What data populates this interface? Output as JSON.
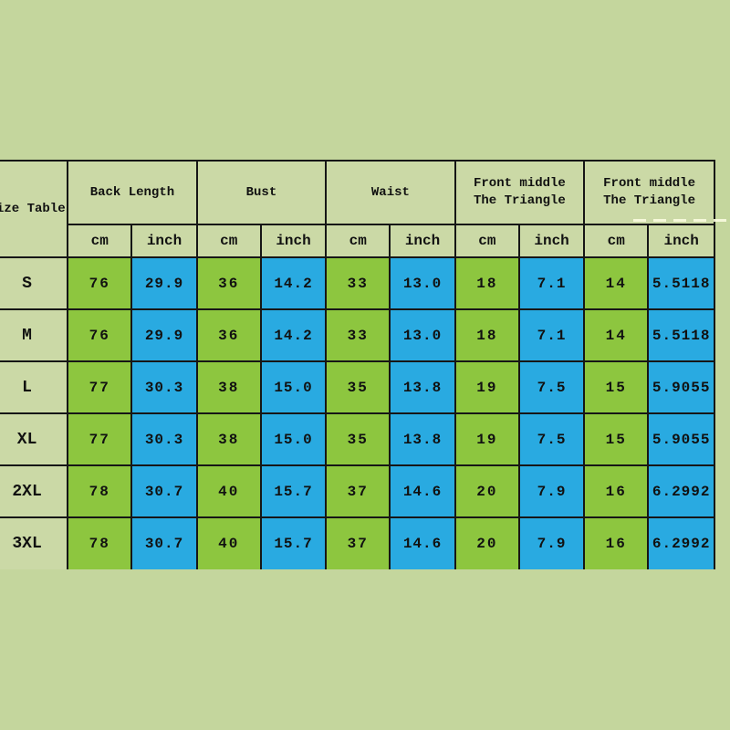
{
  "page": {
    "background_color": "#c4d69d",
    "border_color": "#161616",
    "header_cell_color": "#cbd9a6",
    "cm_cell_color": "#8dc63f",
    "inch_cell_color": "#29aae1"
  },
  "table": {
    "title": "Size Table",
    "column_groups": [
      {
        "label": "Back Length"
      },
      {
        "label": "Bust"
      },
      {
        "label": "Waist"
      },
      {
        "label": "Front middle\nThe Triangle"
      },
      {
        "label": "Front middle\nThe Triangle"
      }
    ],
    "units": [
      "cm",
      "inch",
      "cm",
      "inch",
      "cm",
      "inch",
      "cm",
      "inch",
      "cm",
      "inch"
    ],
    "rows": [
      {
        "size": "S",
        "values": [
          "76",
          "29.9",
          "36",
          "14.2",
          "33",
          "13.0",
          "18",
          "7.1",
          "14",
          "5.5118"
        ]
      },
      {
        "size": "M",
        "values": [
          "76",
          "29.9",
          "36",
          "14.2",
          "33",
          "13.0",
          "18",
          "7.1",
          "14",
          "5.5118"
        ]
      },
      {
        "size": "L",
        "values": [
          "77",
          "30.3",
          "38",
          "15.0",
          "35",
          "13.8",
          "19",
          "7.5",
          "15",
          "5.9055"
        ]
      },
      {
        "size": "XL",
        "values": [
          "77",
          "30.3",
          "38",
          "15.0",
          "35",
          "13.8",
          "19",
          "7.5",
          "15",
          "5.9055"
        ]
      },
      {
        "size": "2XL",
        "values": [
          "78",
          "30.7",
          "40",
          "15.7",
          "37",
          "14.6",
          "20",
          "7.9",
          "16",
          "6.2992"
        ]
      },
      {
        "size": "3XL",
        "values": [
          "78",
          "30.7",
          "40",
          "15.7",
          "37",
          "14.6",
          "20",
          "7.9",
          "16",
          "6.2992"
        ]
      }
    ]
  },
  "chart_data": {
    "type": "table",
    "title": "Size Table",
    "column_groups": [
      "Back Length",
      "Bust",
      "Waist",
      "Front middle The Triangle",
      "Front middle The Triangle"
    ],
    "unit_columns": [
      "cm",
      "inch",
      "cm",
      "inch",
      "cm",
      "inch",
      "cm",
      "inch",
      "cm",
      "inch"
    ],
    "row_labels": [
      "S",
      "M",
      "L",
      "XL",
      "2XL",
      "3XL"
    ],
    "rows": [
      [
        76,
        29.9,
        36,
        14.2,
        33,
        13.0,
        18,
        7.1,
        14,
        5.5118
      ],
      [
        76,
        29.9,
        36,
        14.2,
        33,
        13.0,
        18,
        7.1,
        14,
        5.5118
      ],
      [
        77,
        30.3,
        38,
        15.0,
        35,
        13.8,
        19,
        7.5,
        15,
        5.9055
      ],
      [
        77,
        30.3,
        38,
        15.0,
        35,
        13.8,
        19,
        7.5,
        15,
        5.9055
      ],
      [
        78,
        30.7,
        40,
        15.7,
        37,
        14.6,
        20,
        7.9,
        16,
        6.2992
      ],
      [
        78,
        30.7,
        40,
        15.7,
        37,
        14.6,
        20,
        7.9,
        16,
        6.2992
      ]
    ],
    "layout_hints": {
      "cm_columns_color": "#8dc63f",
      "inch_columns_color": "#29aae1",
      "header_color": "#cbd9a6",
      "table_cropped_left_and_right": true
    }
  }
}
